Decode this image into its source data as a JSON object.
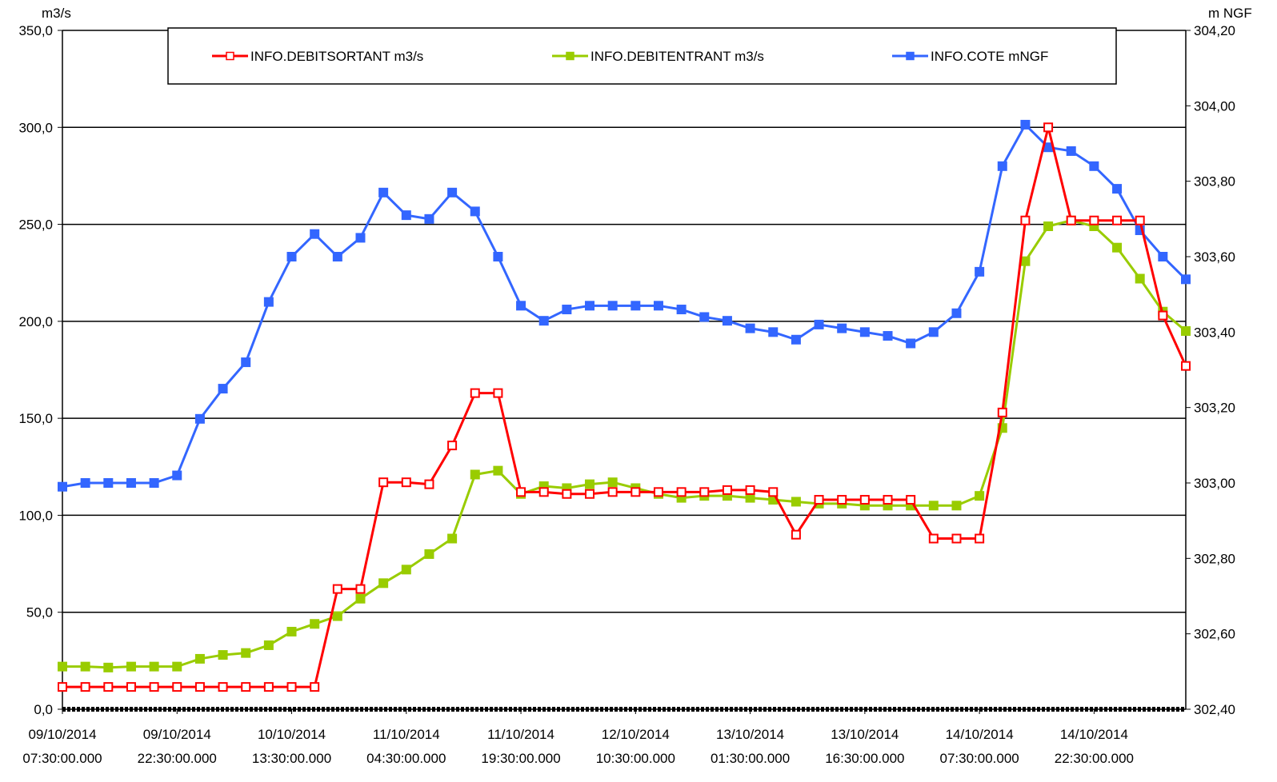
{
  "chart_data": {
    "type": "line",
    "y_label": "m3/s",
    "y2_label": "m NGF",
    "grid": true,
    "legend": "top",
    "x": [
      "2014-10-09T07:30",
      "2014-10-09T10:30",
      "2014-10-09T13:30",
      "2014-10-09T16:30",
      "2014-10-09T19:30",
      "2014-10-09T22:30",
      "2014-10-10T01:30",
      "2014-10-10T04:30",
      "2014-10-10T07:30",
      "2014-10-10T10:30",
      "2014-10-10T13:30",
      "2014-10-10T16:30",
      "2014-10-10T19:30",
      "2014-10-10T22:30",
      "2014-10-11T01:30",
      "2014-10-11T04:30",
      "2014-10-11T07:30",
      "2014-10-11T10:30",
      "2014-10-11T13:30",
      "2014-10-11T16:30",
      "2014-10-11T19:30",
      "2014-10-11T22:30",
      "2014-10-12T01:30",
      "2014-10-12T04:30",
      "2014-10-12T07:30",
      "2014-10-12T10:30",
      "2014-10-12T13:30",
      "2014-10-12T16:30",
      "2014-10-12T19:30",
      "2014-10-12T22:30",
      "2014-10-13T01:30",
      "2014-10-13T04:30",
      "2014-10-13T07:30",
      "2014-10-13T10:30",
      "2014-10-13T13:30",
      "2014-10-13T16:30",
      "2014-10-13T19:30",
      "2014-10-13T22:30",
      "2014-10-14T01:30",
      "2014-10-14T04:30",
      "2014-10-14T07:30",
      "2014-10-14T10:30",
      "2014-10-14T13:30",
      "2014-10-14T16:30",
      "2014-10-14T19:30",
      "2014-10-14T22:30",
      "2014-10-15T01:30",
      "2014-10-15T04:30",
      "2014-10-15T07:30",
      "2014-10-15T10:30"
    ],
    "xlim": [
      "2014-10-09T07:30",
      "2014-10-15T10:30"
    ],
    "xticks": [
      {
        "value": "2014-10-09T07:30",
        "label": "09/10/2014 07:30:00.000"
      },
      {
        "value": "2014-10-09T22:30",
        "label": "09/10/2014 22:30:00.000"
      },
      {
        "value": "2014-10-10T13:30",
        "label": "10/10/2014 13:30:00.000"
      },
      {
        "value": "2014-10-11T04:30",
        "label": "11/10/2014 04:30:00.000"
      },
      {
        "value": "2014-10-11T19:30",
        "label": "11/10/2014 19:30:00.000"
      },
      {
        "value": "2014-10-12T10:30",
        "label": "12/10/2014 10:30:00.000"
      },
      {
        "value": "2014-10-13T01:30",
        "label": "13/10/2014 01:30:00.000"
      },
      {
        "value": "2014-10-13T16:30",
        "label": "13/10/2014 16:30:00.000"
      },
      {
        "value": "2014-10-14T07:30",
        "label": "14/10/2014 07:30:00.000"
      },
      {
        "value": "2014-10-14T22:30",
        "label": "14/10/2014 22:30:00.000"
      }
    ],
    "ylim": [
      0,
      350
    ],
    "yticks": [
      {
        "value": 0,
        "label": "0,0"
      },
      {
        "value": 50,
        "label": "50,0"
      },
      {
        "value": 100,
        "label": "100,0"
      },
      {
        "value": 150,
        "label": "150,0"
      },
      {
        "value": 200,
        "label": "200,0"
      },
      {
        "value": 250,
        "label": "250,0"
      },
      {
        "value": 300,
        "label": "300,0"
      },
      {
        "value": 350,
        "label": "350,0"
      }
    ],
    "y2lim": [
      302.4,
      304.2
    ],
    "y2ticks": [
      {
        "value": 302.4,
        "label": "302,40"
      },
      {
        "value": 302.6,
        "label": "302,60"
      },
      {
        "value": 302.8,
        "label": "302,80"
      },
      {
        "value": 303.0,
        "label": "303,00"
      },
      {
        "value": 303.2,
        "label": "303,20"
      },
      {
        "value": 303.4,
        "label": "303,40"
      },
      {
        "value": 303.6,
        "label": "303,60"
      },
      {
        "value": 303.8,
        "label": "303,80"
      },
      {
        "value": 304.0,
        "label": "304,00"
      },
      {
        "value": 304.2,
        "label": "304,20"
      }
    ],
    "series": [
      {
        "name": "INFO.DEBITSORTANT m3/s",
        "color": "#ff0000",
        "marker": "hollow",
        "values": [
          11.5,
          11.5,
          11.5,
          11.5,
          11.5,
          11.5,
          11.5,
          11.5,
          11.5,
          11.5,
          11.5,
          11.5,
          62,
          62,
          117,
          117,
          116,
          136,
          163,
          163,
          112,
          112,
          111,
          111,
          112,
          112,
          112,
          112,
          112,
          113,
          113,
          112,
          90,
          108,
          108,
          108,
          108,
          108,
          88,
          88,
          88,
          153,
          252,
          300,
          252,
          252,
          252,
          252,
          203,
          177
        ]
      },
      {
        "name": "INFO.DEBITENTRANT m3/s",
        "color": "#99cc00",
        "marker": "filled",
        "values": [
          22,
          22,
          21.5,
          22,
          22,
          22,
          26,
          28,
          29,
          33,
          40,
          44,
          48,
          57,
          65,
          72,
          80,
          88,
          121,
          123,
          111,
          115,
          114,
          116,
          117,
          114,
          111,
          109,
          110,
          110,
          109,
          108,
          107,
          106,
          106,
          105,
          105,
          105,
          105,
          105,
          110,
          145,
          231,
          249,
          252,
          249,
          238,
          222,
          205,
          195
        ]
      },
      {
        "name": "INFO.COTE mNGF",
        "color": "#3366ff",
        "marker": "filled",
        "axis": "y2",
        "values": [
          302.99,
          303.0,
          303.0,
          303.0,
          303.0,
          303.02,
          303.17,
          303.25,
          303.32,
          303.48,
          303.6,
          303.66,
          303.6,
          303.65,
          303.77,
          303.71,
          303.7,
          303.77,
          303.72,
          303.6,
          303.47,
          303.43,
          303.46,
          303.47,
          303.47,
          303.47,
          303.47,
          303.46,
          303.44,
          303.43,
          303.41,
          303.4,
          303.38,
          303.42,
          303.41,
          303.4,
          303.39,
          303.37,
          303.4,
          303.45,
          303.56,
          303.84,
          303.95,
          303.89,
          303.88,
          303.84,
          303.78,
          303.67,
          303.6,
          303.54
        ]
      }
    ]
  }
}
